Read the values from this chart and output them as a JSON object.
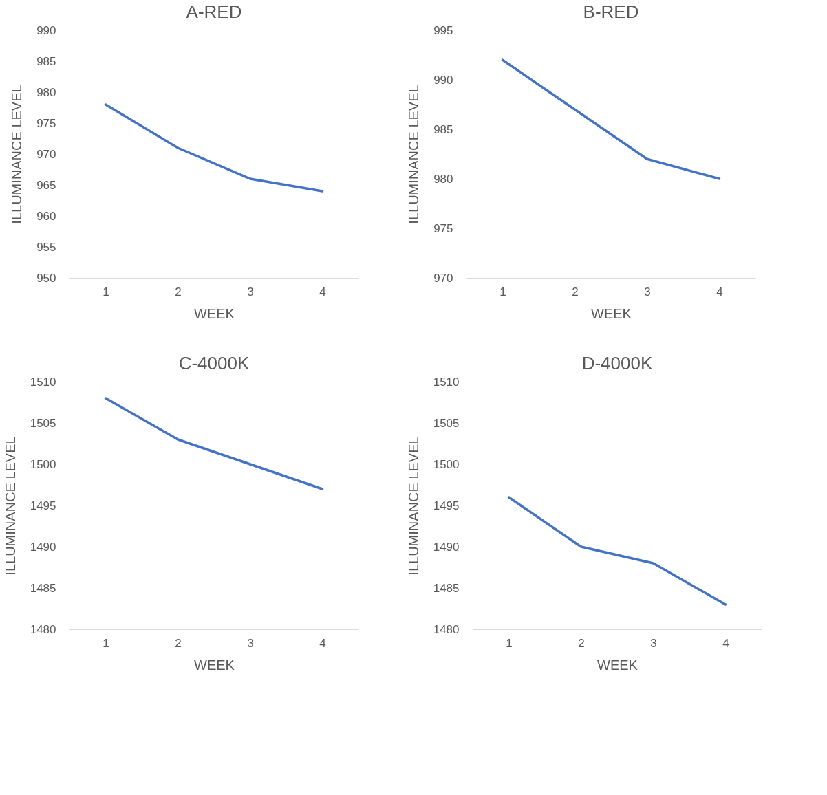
{
  "chart_data": [
    {
      "type": "line",
      "title": "A-RED",
      "xlabel": "WEEK",
      "ylabel": "ILLUMINANCE LEVEL",
      "categories": [
        "1",
        "2",
        "3",
        "4"
      ],
      "series": [
        {
          "color": "#4472c4",
          "values": [
            978,
            971,
            966,
            964
          ]
        }
      ],
      "ylim": [
        950,
        990
      ],
      "yticks": [
        950,
        955,
        960,
        965,
        970,
        975,
        980,
        985,
        990
      ],
      "grid": false
    },
    {
      "type": "line",
      "title": "B-RED",
      "xlabel": "WEEK",
      "ylabel": "ILLUMINANCE LEVEL",
      "categories": [
        "1",
        "2",
        "3",
        "4"
      ],
      "series": [
        {
          "color": "#4472c4",
          "values": [
            992,
            987,
            982,
            980
          ]
        }
      ],
      "ylim": [
        970,
        995
      ],
      "yticks": [
        970,
        975,
        980,
        985,
        990,
        995
      ],
      "grid": false
    },
    {
      "type": "line",
      "title": "C-4000K",
      "xlabel": "WEEK",
      "ylabel": "ILLUMINANCE  LEVEL",
      "categories": [
        "1",
        "2",
        "3",
        "4"
      ],
      "series": [
        {
          "color": "#4472c4",
          "values": [
            1508,
            1503,
            1500,
            1497
          ]
        }
      ],
      "ylim": [
        1480,
        1510
      ],
      "yticks": [
        1480,
        1485,
        1490,
        1495,
        1500,
        1505,
        1510
      ],
      "grid": false
    },
    {
      "type": "line",
      "title": "D-4000K",
      "xlabel": "WEEK",
      "ylabel": "ILLUMINANCE  LEVEL",
      "categories": [
        "1",
        "2",
        "3",
        "4"
      ],
      "series": [
        {
          "color": "#4472c4",
          "values": [
            1496,
            1490,
            1488,
            1483
          ]
        }
      ],
      "ylim": [
        1480,
        1510
      ],
      "yticks": [
        1480,
        1485,
        1490,
        1495,
        1500,
        1505,
        1510
      ],
      "grid": false
    }
  ]
}
